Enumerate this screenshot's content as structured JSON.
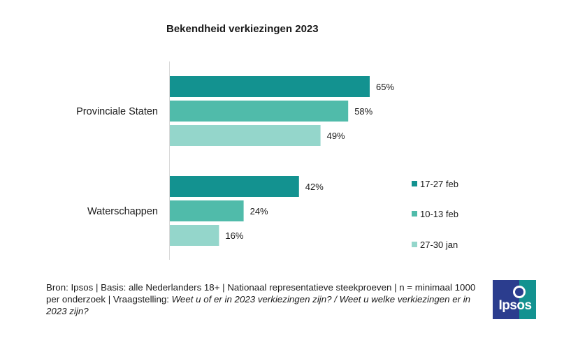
{
  "chart_data": {
    "type": "bar",
    "orientation": "horizontal",
    "title": "Bekendheid verkiezingen 2023",
    "categories": [
      "Provinciale Staten",
      "Waterschappen"
    ],
    "series": [
      {
        "name": "17-27 feb",
        "values": [
          65,
          42
        ],
        "labels": [
          "65%",
          "42%"
        ],
        "color": "#139290"
      },
      {
        "name": "10-13 feb",
        "values": [
          58,
          24
        ],
        "labels": [
          "58%",
          "24%"
        ],
        "color": "#50bbaa"
      },
      {
        "name": "27-30 jan",
        "values": [
          49,
          16
        ],
        "labels": [
          "49%",
          "16%"
        ],
        "color": "#94d6cb"
      }
    ],
    "xlim": [
      0,
      100
    ],
    "unit": "%",
    "grid": false,
    "legend": "right"
  },
  "footnote": {
    "plain": "Bron: Ipsos | Basis: alle Nederlanders 18+ | Nationaal representatieve steekproeven | n = minimaal 1000 per onderzoek | Vraagstelling: ",
    "italic": "Weet u of er in 2023 verkiezingen zijn? / Weet u welke verkiezingen er in 2023 zijn?"
  },
  "logo": {
    "text": "Ipsos",
    "colors": {
      "left": "#2b3d8e",
      "right": "#139290"
    }
  }
}
